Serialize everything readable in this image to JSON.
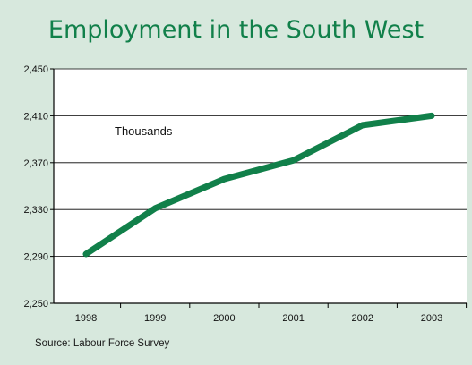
{
  "chart_data": {
    "type": "line",
    "title": "Employment in the South West",
    "annotation": "Thousands",
    "source": "Source: Labour Force Survey",
    "categories": [
      "1998",
      "1999",
      "2000",
      "2001",
      "2002",
      "2003"
    ],
    "values": [
      2292,
      2331,
      2356,
      2372,
      2402,
      2410
    ],
    "ylim": [
      2250,
      2450
    ],
    "yticks": [
      2250,
      2290,
      2330,
      2370,
      2410,
      2450
    ],
    "ytick_labels": [
      "2,250",
      "2,290",
      "2,330",
      "2,370",
      "2,410",
      "2,450"
    ],
    "grid": true,
    "line_color": "#11804a",
    "background_color": "#d7e8dd"
  }
}
